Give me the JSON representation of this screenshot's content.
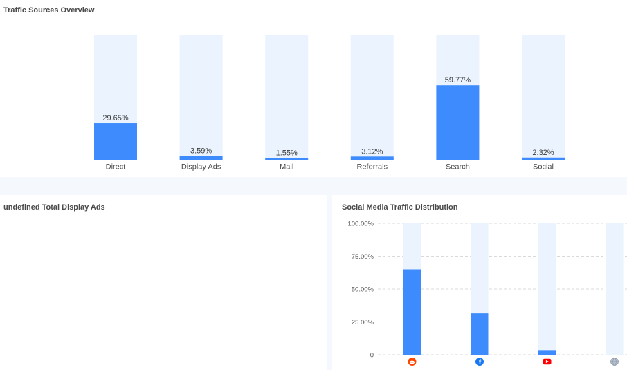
{
  "top_panel": {
    "title": "Traffic Sources Overview"
  },
  "left_panel": {
    "title": "undefined Total Display Ads"
  },
  "right_panel": {
    "title": "Social Media Traffic Distribution"
  },
  "colors": {
    "bar": "#3d8bfd",
    "track": "#eaf3fe",
    "band": "#f5f8fc",
    "grid": "#d9d9d9"
  },
  "chart_data": [
    {
      "type": "bar",
      "title": "Traffic Sources Overview",
      "categories": [
        "Direct",
        "Display Ads",
        "Mail",
        "Referrals",
        "Search",
        "Social"
      ],
      "values": [
        29.65,
        3.59,
        1.55,
        3.12,
        59.77,
        2.32
      ],
      "value_labels": [
        "29.65%",
        "3.59%",
        "1.55%",
        "3.12%",
        "59.77%",
        "2.32%"
      ],
      "ylim": [
        0,
        100
      ],
      "grid": false,
      "legend": "none"
    },
    {
      "type": "bar",
      "title": "Social Media Traffic Distribution",
      "categories": [
        "reddit-icon",
        "facebook-icon",
        "youtube-icon",
        "globe-icon"
      ],
      "values": [
        65,
        31.5,
        3.5,
        0
      ],
      "ylim": [
        0,
        100
      ],
      "yticks": [
        0,
        25,
        50,
        75,
        100
      ],
      "ytick_labels": [
        "0",
        "25.00%",
        "50.00%",
        "75.00%",
        "100.00%"
      ],
      "grid": true,
      "legend": "none"
    }
  ]
}
